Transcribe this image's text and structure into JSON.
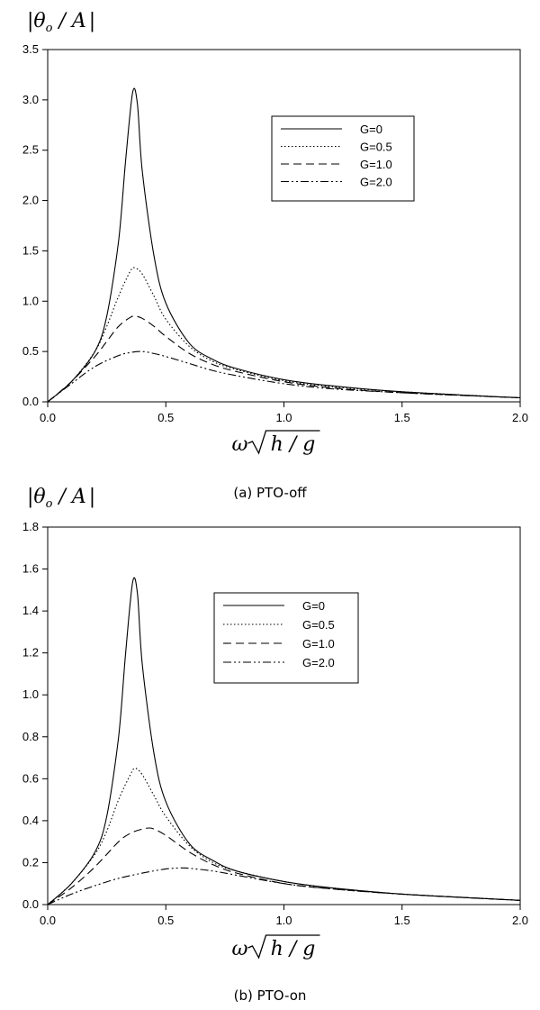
{
  "chart_data": [
    {
      "type": "line",
      "ylabel": {
        "pre": "|",
        "theta": "θ",
        "sub": "o",
        "post": " / A",
        "end": "|"
      },
      "xlabel": {
        "omega": "ω",
        "inner": "h / g"
      },
      "caption": "(a) PTO-off",
      "xlim": [
        0,
        2.0
      ],
      "ylim": [
        0,
        3.5
      ],
      "xticks": [
        "0.0",
        "0.5",
        "1.0",
        "1.5",
        "2.0"
      ],
      "yticks": [
        "0.0",
        "0.5",
        "1.0",
        "1.5",
        "2.0",
        "2.5",
        "3.0",
        "3.5"
      ],
      "legend_position": "top-right",
      "series": [
        {
          "name": "G=0",
          "dash": "solid",
          "x": [
            0,
            0.1,
            0.2,
            0.25,
            0.3,
            0.33,
            0.36,
            0.38,
            0.4,
            0.45,
            0.5,
            0.6,
            0.7,
            0.8,
            1.0,
            1.2,
            1.5,
            2.0
          ],
          "values": [
            0,
            0.2,
            0.5,
            0.85,
            1.6,
            2.4,
            3.08,
            2.95,
            2.3,
            1.45,
            0.98,
            0.58,
            0.42,
            0.33,
            0.22,
            0.16,
            0.1,
            0.04
          ]
        },
        {
          "name": "G=0.5",
          "dash": "dotted",
          "x": [
            0,
            0.1,
            0.2,
            0.25,
            0.3,
            0.35,
            0.37,
            0.4,
            0.45,
            0.5,
            0.6,
            0.7,
            0.8,
            1.0,
            1.2,
            1.5,
            2.0
          ],
          "values": [
            0,
            0.2,
            0.5,
            0.75,
            1.05,
            1.3,
            1.33,
            1.27,
            1.05,
            0.82,
            0.55,
            0.4,
            0.32,
            0.21,
            0.15,
            0.1,
            0.04
          ]
        },
        {
          "name": "G=1.0",
          "dash": "dashed",
          "x": [
            0,
            0.1,
            0.2,
            0.25,
            0.3,
            0.35,
            0.37,
            0.4,
            0.45,
            0.5,
            0.6,
            0.7,
            0.8,
            1.0,
            1.2,
            1.5,
            2.0
          ],
          "values": [
            0,
            0.2,
            0.45,
            0.6,
            0.75,
            0.84,
            0.85,
            0.83,
            0.75,
            0.65,
            0.48,
            0.37,
            0.3,
            0.2,
            0.14,
            0.09,
            0.04
          ]
        },
        {
          "name": "G=2.0",
          "dash": "dashdot",
          "x": [
            0,
            0.1,
            0.2,
            0.3,
            0.35,
            0.4,
            0.45,
            0.5,
            0.6,
            0.7,
            0.8,
            1.0,
            1.2,
            1.5,
            2.0
          ],
          "values": [
            0,
            0.18,
            0.35,
            0.46,
            0.49,
            0.5,
            0.48,
            0.45,
            0.38,
            0.31,
            0.26,
            0.18,
            0.13,
            0.09,
            0.04
          ]
        }
      ]
    },
    {
      "type": "line",
      "ylabel": {
        "pre": "|",
        "theta": "θ",
        "sub": "o",
        "post": " / A",
        "end": "|"
      },
      "xlabel": {
        "omega": "ω",
        "inner": "h / g"
      },
      "caption": "(b) PTO-on",
      "xlim": [
        0,
        2.0
      ],
      "ylim": [
        0,
        1.8
      ],
      "xticks": [
        "0.0",
        "0.5",
        "1.0",
        "1.5",
        "2.0"
      ],
      "yticks": [
        "0.0",
        "0.2",
        "0.4",
        "0.6",
        "0.8",
        "1.0",
        "1.2",
        "1.4",
        "1.6",
        "1.8"
      ],
      "legend_position": "top-right",
      "series": [
        {
          "name": "G=0",
          "dash": "solid",
          "x": [
            0,
            0.1,
            0.2,
            0.25,
            0.3,
            0.33,
            0.36,
            0.38,
            0.4,
            0.45,
            0.5,
            0.6,
            0.7,
            0.8,
            1.0,
            1.2,
            1.5,
            2.0
          ],
          "values": [
            0,
            0.1,
            0.25,
            0.42,
            0.8,
            1.2,
            1.54,
            1.48,
            1.15,
            0.72,
            0.49,
            0.29,
            0.21,
            0.16,
            0.11,
            0.08,
            0.05,
            0.02
          ]
        },
        {
          "name": "G=0.5",
          "dash": "dotted",
          "x": [
            0,
            0.1,
            0.2,
            0.25,
            0.3,
            0.35,
            0.37,
            0.4,
            0.45,
            0.5,
            0.6,
            0.7,
            0.8,
            1.0,
            1.2,
            1.5,
            2.0
          ],
          "values": [
            0,
            0.1,
            0.24,
            0.35,
            0.5,
            0.62,
            0.65,
            0.62,
            0.52,
            0.42,
            0.28,
            0.2,
            0.16,
            0.11,
            0.08,
            0.05,
            0.02
          ]
        },
        {
          "name": "G=1.0",
          "dash": "dashed",
          "x": [
            0,
            0.1,
            0.2,
            0.3,
            0.35,
            0.4,
            0.43,
            0.45,
            0.5,
            0.6,
            0.7,
            0.8,
            1.0,
            1.2,
            1.5,
            2.0
          ],
          "values": [
            0,
            0.08,
            0.18,
            0.3,
            0.34,
            0.36,
            0.365,
            0.36,
            0.33,
            0.25,
            0.19,
            0.15,
            0.1,
            0.075,
            0.05,
            0.02
          ]
        },
        {
          "name": "G=2.0",
          "dash": "dashdot",
          "x": [
            0,
            0.1,
            0.2,
            0.3,
            0.4,
            0.5,
            0.57,
            0.6,
            0.7,
            0.8,
            1.0,
            1.2,
            1.5,
            2.0
          ],
          "values": [
            0,
            0.05,
            0.09,
            0.125,
            0.15,
            0.17,
            0.175,
            0.173,
            0.16,
            0.14,
            0.1,
            0.075,
            0.05,
            0.02
          ]
        }
      ]
    }
  ]
}
